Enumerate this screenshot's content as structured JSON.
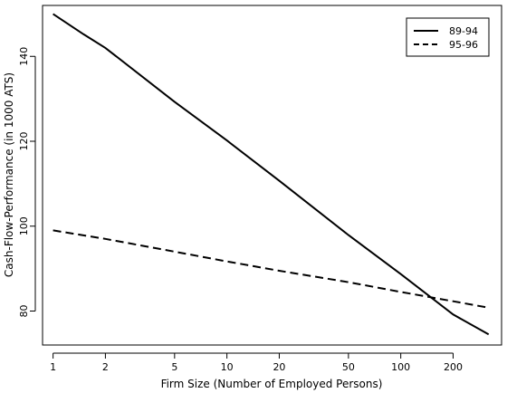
{
  "chart_data": {
    "type": "line",
    "title": "",
    "xlabel": "Firm Size (Number of Employed Persons)",
    "ylabel": "Cash-Flow-Performance (in 1000 ATS)",
    "x_scale": "log",
    "x_ticks": [
      1,
      2,
      5,
      10,
      20,
      50,
      100,
      200
    ],
    "x_tick_labels": [
      "1",
      "2",
      "5",
      "10",
      "20",
      "50",
      "100",
      "200"
    ],
    "y_ticks": [
      80,
      100,
      120,
      140
    ],
    "y_tick_labels": [
      "80",
      "100",
      "120",
      "140"
    ],
    "xlim": [
      0.87,
      380
    ],
    "ylim": [
      72,
      152
    ],
    "grid": false,
    "legend_position": "top-right",
    "series": [
      {
        "name": "89-94",
        "style": "solid",
        "x": [
          1,
          1.5,
          2,
          5,
          10,
          20,
          50,
          100,
          200,
          320
        ],
        "y": [
          150,
          145.2,
          142,
          129.3,
          120.2,
          110.7,
          97.9,
          88.7,
          79.2,
          74.5
        ]
      },
      {
        "name": "95-96",
        "style": "dashed",
        "x": [
          1,
          2,
          5,
          10,
          20,
          50,
          100,
          200,
          320
        ],
        "y": [
          99,
          97,
          94,
          91.7,
          89.5,
          86.8,
          84.5,
          82.3,
          80.8
        ]
      }
    ]
  }
}
